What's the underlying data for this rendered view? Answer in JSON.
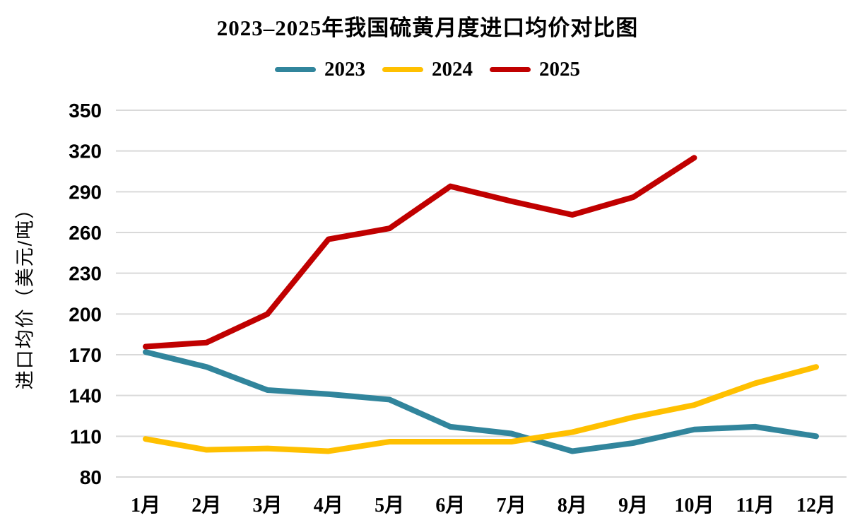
{
  "chart_data": {
    "type": "line",
    "title": "2023–2025年我国硫黄月度进口均价对比图",
    "ylabel": "进口均价（美元/吨）",
    "categories": [
      "1月",
      "2月",
      "3月",
      "4月",
      "5月",
      "6月",
      "7月",
      "8月",
      "9月",
      "10月",
      "11月",
      "12月"
    ],
    "ylim": [
      80,
      350
    ],
    "ytick_step": 30,
    "y_ticks": [
      80,
      110,
      140,
      170,
      200,
      230,
      260,
      290,
      320,
      350
    ],
    "grid": true,
    "grid_color": "#D9D9D9",
    "background_color": "#FFFFFF",
    "text_color": "#000000",
    "legend_position": "top-center",
    "series": [
      {
        "name": "2023",
        "color": "#31859C",
        "values": [
          172,
          161,
          144,
          141,
          137,
          117,
          112,
          99,
          105,
          115,
          117,
          110
        ]
      },
      {
        "name": "2024",
        "color": "#FFC000",
        "values": [
          108,
          100,
          101,
          99,
          106,
          106,
          106,
          113,
          124,
          133,
          149,
          161
        ]
      },
      {
        "name": "2025",
        "color": "#C00000",
        "values": [
          176,
          179,
          200,
          255,
          263,
          294,
          283,
          273,
          286,
          315
        ]
      }
    ]
  }
}
